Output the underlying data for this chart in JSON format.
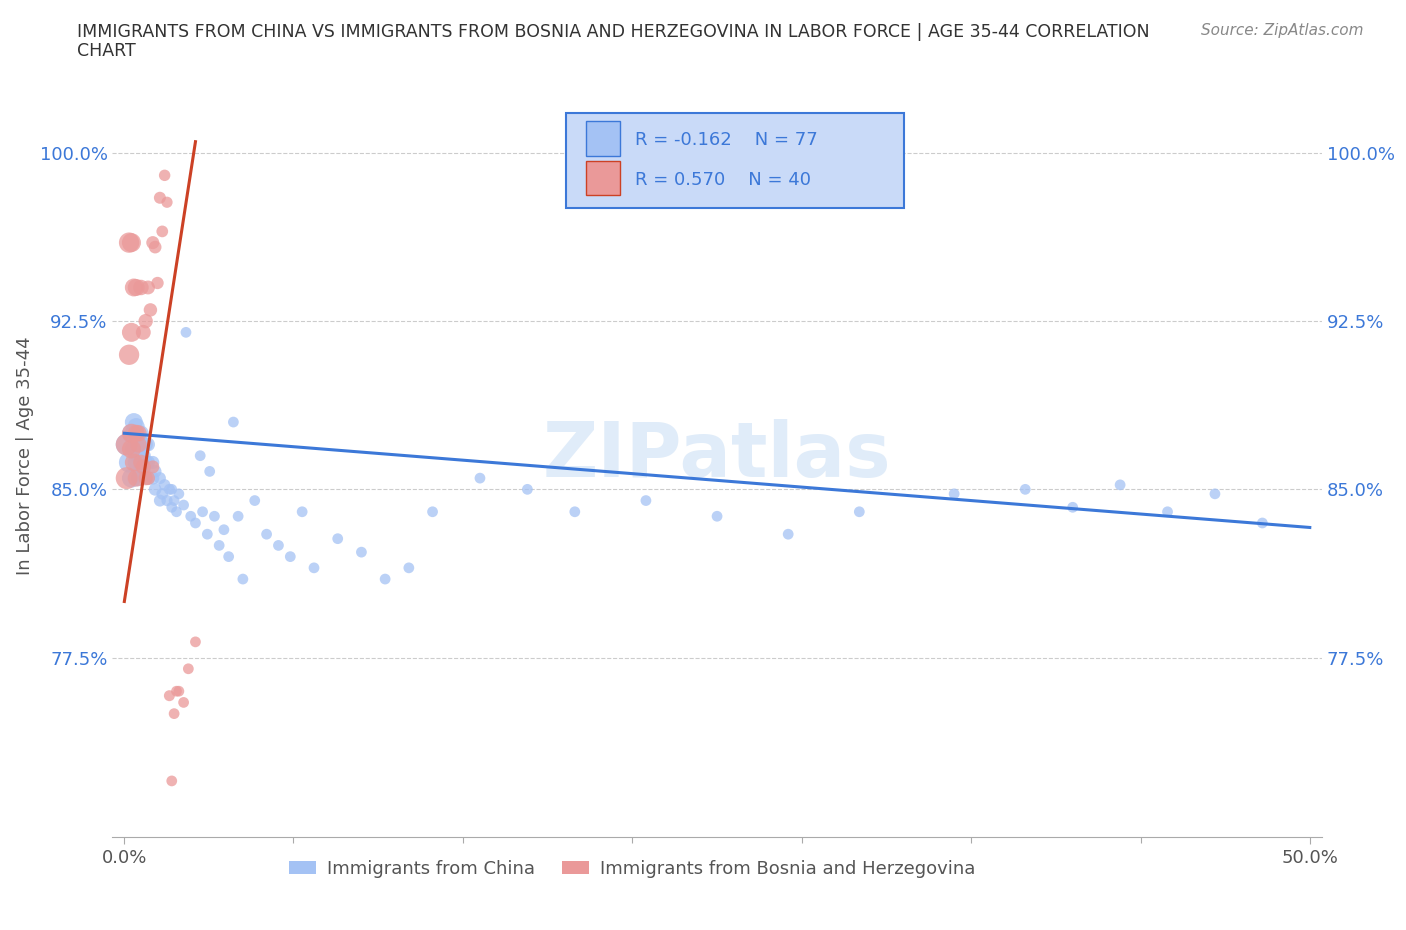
{
  "title_line1": "IMMIGRANTS FROM CHINA VS IMMIGRANTS FROM BOSNIA AND HERZEGOVINA IN LABOR FORCE | AGE 35-44 CORRELATION",
  "title_line2": "CHART",
  "source_text": "Source: ZipAtlas.com",
  "ylabel": "In Labor Force | Age 35-44",
  "xlim": [
    -0.005,
    0.505
  ],
  "ylim": [
    0.695,
    1.035
  ],
  "yticks": [
    0.775,
    0.85,
    0.925,
    1.0
  ],
  "ytick_labels": [
    "77.5%",
    "85.0%",
    "92.5%",
    "100.0%"
  ],
  "xticks": [
    0.0,
    0.5
  ],
  "xtick_labels": [
    "0.0%",
    "50.0%"
  ],
  "china_color": "#a4c2f4",
  "bosnia_color": "#ea9999",
  "china_line_color": "#3c78d8",
  "bosnia_line_color": "#cc4125",
  "china_R": -0.162,
  "china_N": 77,
  "bosnia_R": 0.57,
  "bosnia_N": 40,
  "watermark": "ZIPatlas",
  "legend_border_color": "#3c78d8",
  "legend_fill_color": "#c9daf8",
  "legend_text_color": "#3c78d8",
  "china_scatter_x": [
    0.001,
    0.002,
    0.003,
    0.003,
    0.004,
    0.004,
    0.004,
    0.005,
    0.005,
    0.005,
    0.006,
    0.006,
    0.007,
    0.007,
    0.007,
    0.008,
    0.008,
    0.009,
    0.009,
    0.01,
    0.01,
    0.01,
    0.012,
    0.012,
    0.013,
    0.013,
    0.015,
    0.015,
    0.016,
    0.017,
    0.018,
    0.019,
    0.02,
    0.02,
    0.021,
    0.022,
    0.023,
    0.025,
    0.026,
    0.028,
    0.03,
    0.032,
    0.033,
    0.035,
    0.036,
    0.038,
    0.04,
    0.042,
    0.044,
    0.046,
    0.048,
    0.05,
    0.055,
    0.06,
    0.065,
    0.07,
    0.075,
    0.08,
    0.09,
    0.1,
    0.11,
    0.12,
    0.13,
    0.15,
    0.17,
    0.19,
    0.22,
    0.25,
    0.28,
    0.31,
    0.35,
    0.38,
    0.4,
    0.42,
    0.44,
    0.46,
    0.48
  ],
  "china_scatter_y": [
    0.87,
    0.862,
    0.875,
    0.855,
    0.868,
    0.875,
    0.88,
    0.862,
    0.87,
    0.878,
    0.855,
    0.865,
    0.86,
    0.868,
    0.875,
    0.858,
    0.865,
    0.862,
    0.87,
    0.855,
    0.862,
    0.87,
    0.855,
    0.862,
    0.85,
    0.858,
    0.845,
    0.855,
    0.848,
    0.852,
    0.845,
    0.85,
    0.842,
    0.85,
    0.845,
    0.84,
    0.848,
    0.843,
    0.92,
    0.838,
    0.835,
    0.865,
    0.84,
    0.83,
    0.858,
    0.838,
    0.825,
    0.832,
    0.82,
    0.88,
    0.838,
    0.81,
    0.845,
    0.83,
    0.825,
    0.82,
    0.84,
    0.815,
    0.828,
    0.822,
    0.81,
    0.815,
    0.84,
    0.855,
    0.85,
    0.84,
    0.845,
    0.838,
    0.83,
    0.84,
    0.848,
    0.85,
    0.842,
    0.852,
    0.84,
    0.848,
    0.835
  ],
  "bosnia_scatter_x": [
    0.001,
    0.001,
    0.002,
    0.002,
    0.003,
    0.003,
    0.003,
    0.003,
    0.004,
    0.004,
    0.005,
    0.005,
    0.005,
    0.006,
    0.006,
    0.007,
    0.007,
    0.008,
    0.008,
    0.009,
    0.009,
    0.01,
    0.01,
    0.011,
    0.012,
    0.012,
    0.013,
    0.014,
    0.015,
    0.016,
    0.017,
    0.018,
    0.019,
    0.02,
    0.021,
    0.022,
    0.023,
    0.025,
    0.027,
    0.03
  ],
  "bosnia_scatter_y": [
    0.87,
    0.855,
    0.91,
    0.96,
    0.868,
    0.875,
    0.92,
    0.96,
    0.862,
    0.94,
    0.855,
    0.875,
    0.94,
    0.87,
    0.875,
    0.862,
    0.94,
    0.86,
    0.92,
    0.855,
    0.925,
    0.855,
    0.94,
    0.93,
    0.86,
    0.96,
    0.958,
    0.942,
    0.98,
    0.965,
    0.99,
    0.978,
    0.758,
    0.72,
    0.75,
    0.76,
    0.76,
    0.755,
    0.77,
    0.782
  ],
  "china_line_x": [
    0.0,
    0.5
  ],
  "china_line_y": [
    0.875,
    0.833
  ],
  "bosnia_line_x": [
    0.0,
    0.03
  ],
  "bosnia_line_y": [
    0.8,
    1.005
  ]
}
